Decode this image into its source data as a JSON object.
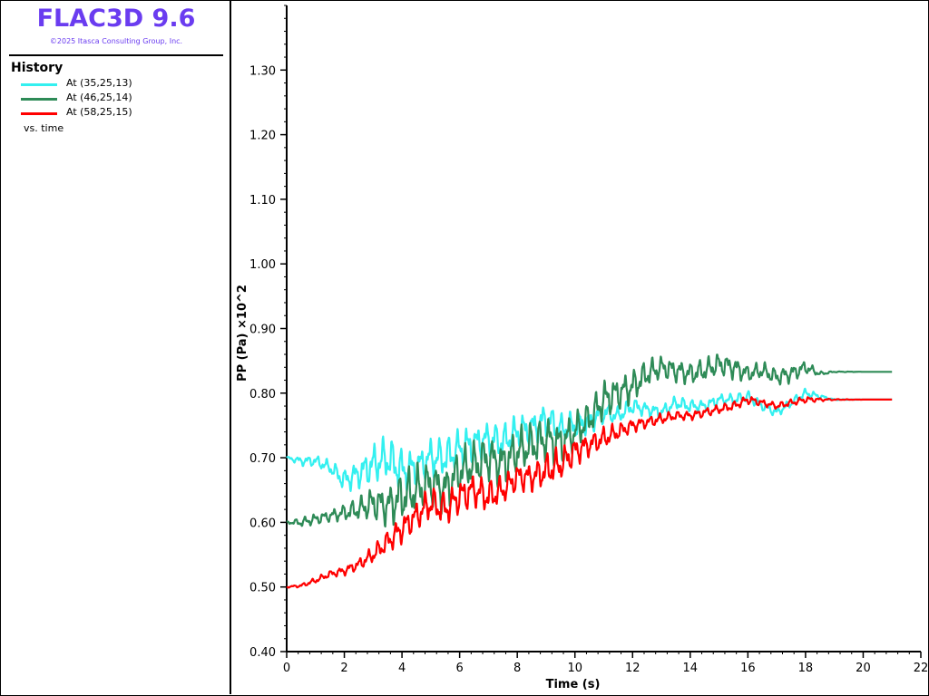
{
  "app": {
    "title": "FLAC3D 9.6",
    "copyright": "©2025 Itasca Consulting Group, Inc."
  },
  "legend": {
    "heading": "History",
    "items": [
      {
        "label": "At (35,25,13)",
        "color": "#33f0f0"
      },
      {
        "label": "At (46,25,14)",
        "color": "#2e8b57"
      },
      {
        "label": "At (58,25,15)",
        "color": "#ff0000"
      }
    ],
    "vs": "vs. time"
  },
  "chart_data": {
    "type": "line",
    "xlabel": "Time (s)",
    "ylabel": "PP (Pa) ×10^2",
    "xlim": [
      0,
      22
    ],
    "ylim": [
      0.4,
      1.4
    ],
    "xticks": [
      "0",
      "2",
      "4",
      "6",
      "8",
      "10",
      "12",
      "14",
      "16",
      "18",
      "20",
      "22"
    ],
    "yticks": [
      "0.40",
      "0.50",
      "0.60",
      "0.70",
      "0.80",
      "0.90",
      "1.00",
      "1.10",
      "1.20",
      "1.30"
    ],
    "grid": false,
    "legend_position": "left-panel",
    "series": [
      {
        "name": "At (35,25,13)",
        "color": "#33f0f0",
        "x": [
          0,
          0.5,
          1,
          1.5,
          2,
          2.5,
          3,
          3.5,
          4,
          4.5,
          5,
          5.5,
          6,
          6.5,
          7,
          7.5,
          8,
          8.5,
          9,
          9.5,
          10,
          10.5,
          11,
          11.5,
          12,
          12.5,
          13,
          13.5,
          14,
          14.5,
          15,
          15.5,
          16,
          16.5,
          17,
          17.5,
          18,
          18.5,
          19,
          19.5,
          20,
          20.5,
          21
        ],
        "y": [
          0.7,
          0.695,
          0.695,
          0.685,
          0.665,
          0.675,
          0.69,
          0.7,
          0.68,
          0.685,
          0.7,
          0.7,
          0.715,
          0.72,
          0.73,
          0.725,
          0.74,
          0.745,
          0.76,
          0.745,
          0.75,
          0.755,
          0.77,
          0.765,
          0.78,
          0.775,
          0.77,
          0.785,
          0.78,
          0.78,
          0.79,
          0.79,
          0.795,
          0.78,
          0.77,
          0.785,
          0.8,
          0.795,
          0.79,
          0.79,
          0.79,
          0.79,
          0.79
        ],
        "noise": [
          0.002,
          0.008,
          0.01,
          0.012,
          0.02,
          0.025,
          0.035,
          0.04,
          0.04,
          0.03,
          0.035,
          0.035,
          0.035,
          0.035,
          0.03,
          0.03,
          0.03,
          0.03,
          0.03,
          0.025,
          0.025,
          0.02,
          0.02,
          0.015,
          0.015,
          0.012,
          0.012,
          0.012,
          0.012,
          0.01,
          0.01,
          0.01,
          0.01,
          0.008,
          0.008,
          0.008,
          0.008,
          0.004,
          0.001,
          0.0005,
          0,
          0,
          0
        ]
      },
      {
        "name": "At (46,25,14)",
        "color": "#2e8b57",
        "x": [
          0,
          0.5,
          1,
          1.5,
          2,
          2.5,
          3,
          3.5,
          4,
          4.5,
          5,
          5.5,
          6,
          6.5,
          7,
          7.5,
          8,
          8.5,
          9,
          9.5,
          10,
          10.5,
          11,
          11.5,
          12,
          12.5,
          13,
          13.5,
          14,
          14.5,
          15,
          15.5,
          16,
          16.5,
          17,
          17.5,
          18,
          18.5,
          19,
          19.5,
          20,
          20.5,
          21
        ],
        "y": [
          0.6,
          0.6,
          0.605,
          0.61,
          0.615,
          0.62,
          0.63,
          0.625,
          0.64,
          0.65,
          0.66,
          0.65,
          0.68,
          0.69,
          0.7,
          0.69,
          0.71,
          0.72,
          0.73,
          0.72,
          0.74,
          0.76,
          0.79,
          0.8,
          0.81,
          0.83,
          0.84,
          0.835,
          0.83,
          0.835,
          0.845,
          0.84,
          0.83,
          0.835,
          0.825,
          0.83,
          0.84,
          0.83,
          0.833,
          0.833,
          0.833,
          0.833,
          0.833
        ],
        "noise": [
          0.002,
          0.008,
          0.01,
          0.01,
          0.015,
          0.02,
          0.03,
          0.035,
          0.045,
          0.045,
          0.04,
          0.04,
          0.04,
          0.04,
          0.04,
          0.04,
          0.04,
          0.04,
          0.04,
          0.04,
          0.035,
          0.03,
          0.035,
          0.03,
          0.03,
          0.025,
          0.02,
          0.02,
          0.02,
          0.02,
          0.02,
          0.02,
          0.015,
          0.015,
          0.015,
          0.015,
          0.012,
          0.004,
          0.001,
          0.0005,
          0,
          0,
          0
        ]
      },
      {
        "name": "At (58,25,15)",
        "color": "#ff0000",
        "x": [
          0,
          0.5,
          1,
          1.5,
          2,
          2.5,
          3,
          3.5,
          4,
          4.5,
          5,
          5.5,
          6,
          6.5,
          7,
          7.5,
          8,
          8.5,
          9,
          9.5,
          10,
          10.5,
          11,
          11.5,
          12,
          12.5,
          13,
          13.5,
          14,
          14.5,
          15,
          15.5,
          16,
          16.5,
          17,
          17.5,
          18,
          18.5,
          19,
          19.5,
          20,
          20.5,
          21
        ],
        "y": [
          0.5,
          0.502,
          0.51,
          0.52,
          0.525,
          0.535,
          0.55,
          0.57,
          0.59,
          0.61,
          0.63,
          0.62,
          0.64,
          0.65,
          0.64,
          0.65,
          0.67,
          0.67,
          0.68,
          0.69,
          0.71,
          0.72,
          0.73,
          0.74,
          0.75,
          0.755,
          0.76,
          0.765,
          0.765,
          0.77,
          0.775,
          0.78,
          0.79,
          0.785,
          0.78,
          0.785,
          0.79,
          0.79,
          0.79,
          0.79,
          0.79,
          0.79,
          0.79
        ],
        "noise": [
          0.001,
          0.003,
          0.005,
          0.006,
          0.008,
          0.01,
          0.015,
          0.02,
          0.025,
          0.025,
          0.03,
          0.03,
          0.03,
          0.03,
          0.03,
          0.025,
          0.025,
          0.025,
          0.03,
          0.03,
          0.025,
          0.02,
          0.02,
          0.015,
          0.012,
          0.01,
          0.01,
          0.008,
          0.008,
          0.008,
          0.008,
          0.008,
          0.008,
          0.006,
          0.006,
          0.006,
          0.006,
          0.003,
          0.001,
          0.0005,
          0,
          0,
          0
        ]
      }
    ]
  }
}
